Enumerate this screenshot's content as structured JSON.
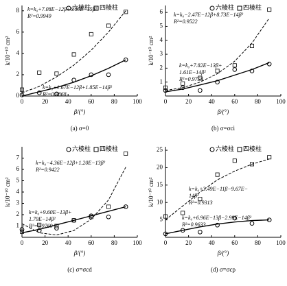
{
  "chart_data": [
    {
      "type": "scatter",
      "caption": "(a) σ=0",
      "xlabel": "β/(°)",
      "ylabel": "k/10⁻¹⁰ cm²",
      "x": [
        0,
        15,
        30,
        45,
        60,
        75,
        90
      ],
      "xlim": [
        0,
        100
      ],
      "xticks": [
        0,
        20,
        40,
        60,
        80,
        100
      ],
      "ylim": [
        0,
        8.5
      ],
      "yticks": [
        0,
        2,
        4,
        6,
        8
      ],
      "series": [
        {
          "name": "六棱柱",
          "marker": "circle",
          "color": "#000000",
          "values": [
            0.1,
            0.3,
            0.2,
            1.5,
            2.0,
            2.0,
            3.4
          ]
        },
        {
          "name": "四棱柱",
          "marker": "square",
          "color": "#000000",
          "values": [
            0.6,
            2.2,
            2.1,
            3.9,
            5.8,
            6.6,
            7.9
          ]
        },
        {
          "style": "dashed",
          "color": "#000000",
          "values": [
            0.3,
            0.9,
            1.8,
            2.9,
            4.3,
            6.0,
            8.0
          ]
        },
        {
          "style": "solid",
          "color": "#000000",
          "values": [
            0.0,
            0.4,
            0.8,
            1.3,
            1.9,
            2.6,
            3.4
          ]
        }
      ],
      "annotations": [
        [
          "k=k₀+7.08E−12β+6.69E−15β²",
          "R²=0.9949"
        ],
        [
          "k=k₀+1.67E−12β+1.85E−14β²",
          "R²=0.9868"
        ]
      ]
    },
    {
      "type": "scatter",
      "caption": "(b) σ=σci",
      "xlabel": "β/(°)",
      "ylabel": "k/10⁻¹⁰ cm²",
      "x": [
        0,
        15,
        30,
        45,
        60,
        75,
        90
      ],
      "xlim": [
        0,
        100
      ],
      "xticks": [
        0,
        20,
        40,
        60,
        80,
        100
      ],
      "ylim": [
        0,
        6.5
      ],
      "yticks": [
        1,
        2,
        3,
        4,
        5,
        6
      ],
      "series": [
        {
          "name": "六棱柱",
          "marker": "circle",
          "color": "#000000",
          "values": [
            0.4,
            0.6,
            0.4,
            1.0,
            1.9,
            1.8,
            2.3
          ]
        },
        {
          "name": "四棱柱",
          "marker": "square",
          "color": "#000000",
          "values": [
            0.6,
            0.9,
            1.3,
            1.8,
            2.2,
            3.6,
            6.2
          ]
        },
        {
          "style": "dashed",
          "color": "#000000",
          "values": [
            0.4,
            0.6,
            1.0,
            1.6,
            2.5,
            3.8,
            5.6
          ]
        },
        {
          "style": "solid",
          "color": "#000000",
          "values": [
            0.3,
            0.5,
            0.8,
            1.1,
            1.5,
            1.9,
            2.4
          ]
        }
      ],
      "annotations": [
        [
          "k=k₀−2.47E−12β+8.73E−14β²",
          "R²=0.9522"
        ],
        [
          "k=k₀+7.82E−13β+",
          "1.61E−14β²",
          "R²=0.9758"
        ]
      ]
    },
    {
      "type": "scatter",
      "caption": "(c) σ=σcd",
      "xlabel": "β/(°)",
      "ylabel": "k/10⁻¹⁰ cm²",
      "x": [
        0,
        15,
        30,
        45,
        60,
        75,
        90
      ],
      "xlim": [
        0,
        100
      ],
      "xticks": [
        0,
        20,
        40,
        60,
        80,
        100
      ],
      "ylim": [
        0,
        8
      ],
      "yticks": [
        1,
        2,
        3,
        4,
        5,
        6,
        7
      ],
      "series": [
        {
          "name": "六棱柱",
          "marker": "circle",
          "color": "#000000",
          "values": [
            0.7,
            0.6,
            0.8,
            1.5,
            1.9,
            1.8,
            2.7
          ]
        },
        {
          "name": "四棱柱",
          "marker": "square",
          "color": "#000000",
          "values": [
            0.5,
            1.1,
            1.0,
            1.5,
            1.8,
            2.7,
            7.4
          ]
        },
        {
          "style": "dashed",
          "color": "#000000",
          "values": [
            1.2,
            0.4,
            0.2,
            0.6,
            1.6,
            3.3,
            6.2
          ]
        },
        {
          "style": "solid",
          "color": "#000000",
          "values": [
            0.4,
            0.7,
            1.1,
            1.5,
            1.9,
            2.3,
            2.7
          ]
        }
      ],
      "annotations": [
        [
          "k=k₀−4.36E−12β+1.20E−13β²",
          "R²=0.9422"
        ],
        [
          "k=k₀+9.60E−13β+",
          "1.79E−14β²",
          "R²=0.9769"
        ]
      ]
    },
    {
      "type": "scatter",
      "caption": "(d) σ=σcp",
      "xlabel": "β/(°)",
      "ylabel": "k/10⁻¹⁰ cm²",
      "x": [
        0,
        15,
        30,
        45,
        60,
        75,
        90
      ],
      "xlim": [
        0,
        100
      ],
      "xticks": [
        0,
        20,
        40,
        60,
        80,
        100
      ],
      "ylim": [
        0,
        26
      ],
      "yticks": [
        5,
        10,
        15,
        20,
        25
      ],
      "series": [
        {
          "name": "六棱柱",
          "marker": "circle",
          "color": "#000000",
          "values": [
            1,
            2,
            1.5,
            3.5,
            5.5,
            4,
            5
          ]
        },
        {
          "name": "四棱柱",
          "marker": "square",
          "color": "#000000",
          "values": [
            6,
            7,
            11,
            18,
            22,
            21,
            23
          ]
        },
        {
          "style": "dashed",
          "color": "#000000",
          "values": [
            5,
            9,
            13,
            16.5,
            19,
            21,
            22.5
          ]
        },
        {
          "style": "solid",
          "color": "#000000",
          "values": [
            1,
            2,
            3,
            3.8,
            4.4,
            4.8,
            5
          ]
        }
      ],
      "annotations": [
        [
          "k=k₀+3.49E−11β−9.67E−",
          "14β²",
          "R²=0.9313"
        ],
        [
          "k=k₀+6.96E−13β−2.99E−14β²",
          "R²=0.9633"
        ]
      ]
    }
  ]
}
